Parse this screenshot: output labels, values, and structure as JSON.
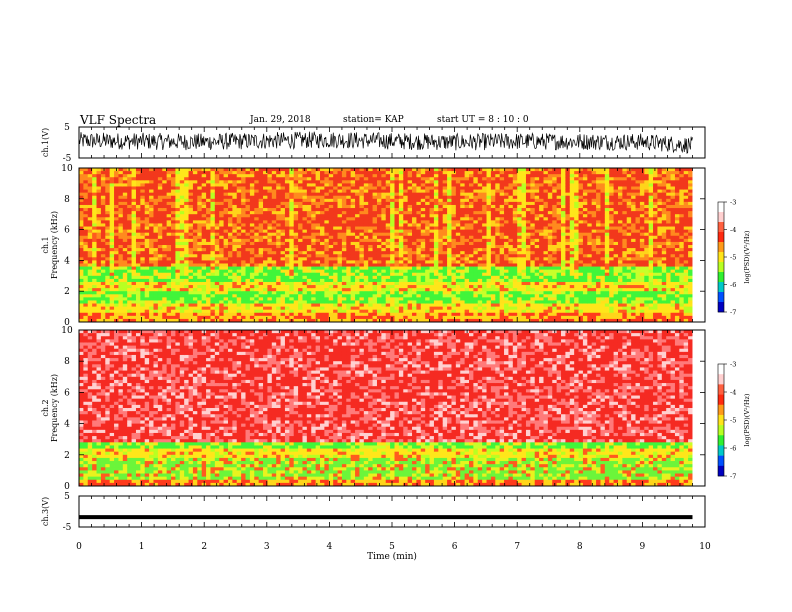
{
  "header": {
    "title": "VLF Spectra",
    "date": "Jan. 29, 2018",
    "station": "station= KAP",
    "start": "start  UT =   8 : 10 : 0"
  },
  "chart_data": [
    {
      "type": "line",
      "panel": "ch1-waveform",
      "ylabel": "ch.1(V)",
      "ylim": [
        -5,
        5
      ],
      "yticks": [
        "5",
        "-5"
      ],
      "xlim": [
        0,
        10
      ],
      "color": "#000000",
      "series": [
        {
          "x": [
            0,
            1,
            2,
            3,
            4,
            5,
            6,
            7,
            8,
            9,
            9.8
          ],
          "values": [
            0.6,
            0.4,
            0.2,
            0.6,
            0.9,
            0.5,
            0.1,
            0.4,
            0.3,
            0.2,
            -0.9
          ]
        }
      ]
    },
    {
      "type": "heatmap",
      "panel": "ch1-spectrogram",
      "ylabel": "ch.1\nFrequency (kHz)",
      "ylim": [
        0,
        10
      ],
      "yticks": [
        "0",
        "2",
        "4",
        "6",
        "8",
        "10"
      ],
      "xlim": [
        0,
        10
      ],
      "data_end_min": 9.8,
      "colorbar": {
        "label": "log(PSD)(V²/Hz)",
        "range": [
          -7,
          -3
        ],
        "ticks": [
          "-3",
          "-4",
          "-5",
          "-6",
          "-7"
        ]
      },
      "bands_khz": [
        {
          "from": 0,
          "to": 0.6,
          "level": "yellow-red striations"
        },
        {
          "from": 0.6,
          "to": 1.2,
          "level": "yellow"
        },
        {
          "from": 1.2,
          "to": 2.0,
          "level": "green"
        },
        {
          "from": 2.0,
          "to": 2.6,
          "level": "yellow"
        },
        {
          "from": 2.6,
          "to": 3.6,
          "level": "green"
        },
        {
          "from": 3.6,
          "to": 10,
          "level": "red-orange"
        }
      ]
    },
    {
      "type": "heatmap",
      "panel": "ch2-spectrogram",
      "ylabel": "ch.2\nFrequency (kHz)",
      "ylim": [
        0,
        10
      ],
      "yticks": [
        "0",
        "2",
        "4",
        "6",
        "8",
        "10"
      ],
      "xlim": [
        0,
        10
      ],
      "data_end_min": 9.8,
      "colorbar": {
        "label": "log(PSD)(V²/Hz)",
        "range": [
          -7,
          -3
        ],
        "ticks": [
          "-3",
          "-4",
          "-5",
          "-6",
          "-7"
        ]
      },
      "bands_khz": [
        {
          "from": 0,
          "to": 0.5,
          "level": "yellow-red striations"
        },
        {
          "from": 0.5,
          "to": 1.9,
          "level": "green-yellow"
        },
        {
          "from": 1.9,
          "to": 2.4,
          "level": "yellow"
        },
        {
          "from": 2.4,
          "to": 2.8,
          "level": "green"
        },
        {
          "from": 2.8,
          "to": 10,
          "level": "red-pink"
        }
      ]
    },
    {
      "type": "line",
      "panel": "ch3-waveform",
      "ylabel": "ch.3(V)",
      "ylim": [
        -5,
        5
      ],
      "yticks": [
        "5",
        "-5"
      ],
      "xlim": [
        0,
        10
      ],
      "xlabel": "Time (min)",
      "xticks": [
        "0",
        "1",
        "2",
        "3",
        "4",
        "5",
        "6",
        "7",
        "8",
        "9",
        "10"
      ],
      "series": [
        {
          "x": [
            0,
            9.8
          ],
          "values": [
            -1.8,
            -1.8
          ]
        }
      ]
    }
  ]
}
